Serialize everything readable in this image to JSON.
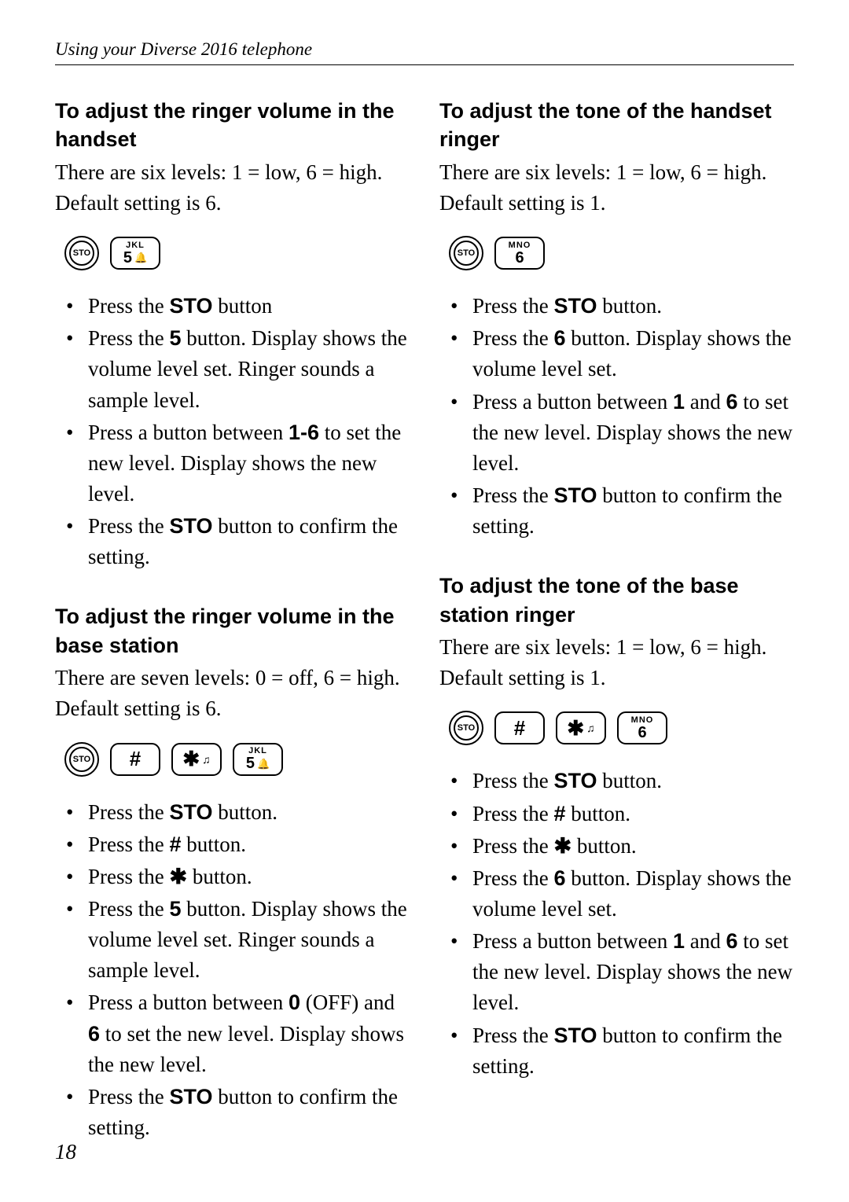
{
  "header": "Using your Diverse 2016 telephone",
  "pageNumber": "18",
  "buttons": {
    "sto": "STO",
    "key5": {
      "top": "JKL",
      "main": "5",
      "bell": "🔔"
    },
    "key6": {
      "top": "MNO",
      "main": "6"
    },
    "keyHash": {
      "main": "#"
    },
    "keyStar": {
      "main": "✱",
      "note": "♫"
    }
  },
  "left": {
    "sec1": {
      "title": "To adjust the ringer volume in the handset",
      "intro": "There are six levels: 1 = low, 6 = high. Default setting is 6.",
      "steps": [
        {
          "pre": "Press the ",
          "bold": "STO",
          "post": " button"
        },
        {
          "pre": "Press the ",
          "bold": "5",
          "post": " button. Display shows the volume level set. Ringer sounds a sample level."
        },
        {
          "pre": "Press a button between ",
          "bold": "1-6",
          "post": " to set the new level. Display shows the new level."
        },
        {
          "pre": "Press the ",
          "bold": "STO",
          "post": " button to confirm the setting."
        }
      ]
    },
    "sec2": {
      "title": "To adjust the ringer volume in the base station",
      "intro": "There are seven levels: 0 = off, 6 = high. Default setting is 6.",
      "steps": [
        {
          "pre": "Press the ",
          "bold": "STO",
          "post": " button."
        },
        {
          "pre": "Press the ",
          "bold": "#",
          "post": " button."
        },
        {
          "pre": "Press the ",
          "bold": "✱",
          "post": " button."
        },
        {
          "pre": "Press the ",
          "bold": "5",
          "post": " button. Display shows the volume level set. Ringer sounds a sample level."
        },
        {
          "pre": "Press a button between ",
          "bold": "0",
          "post1": " (OFF) and ",
          "bold2": "6",
          "post2": " to set the new level. Display shows the new level."
        },
        {
          "pre": "Press the ",
          "bold": "STO",
          "post": " button to confirm the setting."
        }
      ]
    }
  },
  "right": {
    "sec1": {
      "title": "To adjust the tone of the handset ringer",
      "intro": "There are six levels: 1 = low, 6 = high. Default setting is 1.",
      "steps": [
        {
          "pre": "Press the ",
          "bold": "STO",
          "post": " button."
        },
        {
          "pre": "Press the ",
          "bold": "6",
          "post": " button. Display shows the volume level set."
        },
        {
          "pre": "Press a button between ",
          "bold": "1",
          "post1": " and ",
          "bold2": "6",
          "post2": " to set the new level. Display shows the new level."
        },
        {
          "pre": "Press the ",
          "bold": "STO",
          "post": " button to confirm the setting."
        }
      ]
    },
    "sec2": {
      "title": "To adjust the tone of the base station ringer",
      "intro": "There are six levels: 1 = low, 6 = high. Default setting is 1.",
      "steps": [
        {
          "pre": "Press the ",
          "bold": "STO",
          "post": " button."
        },
        {
          "pre": "Press the ",
          "bold": "#",
          "post": " button."
        },
        {
          "pre": "Press the ",
          "bold": "✱",
          "post": " button."
        },
        {
          "pre": "Press the ",
          "bold": "6",
          "post": " button. Display shows the volume level set."
        },
        {
          "pre": "Press a button between ",
          "bold": "1",
          "post1": " and ",
          "bold2": "6",
          "post2": " to set the new level. Display shows the new level."
        },
        {
          "pre": "Press the ",
          "bold": "STO",
          "post": " button to confirm the setting."
        }
      ]
    }
  }
}
